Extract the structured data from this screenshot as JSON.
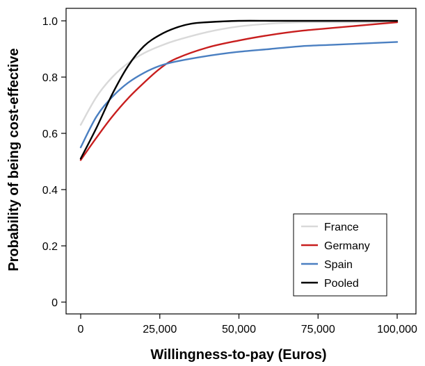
{
  "chart_data": {
    "type": "line",
    "xlabel": "Willingness-to-pay (Euros)",
    "ylabel": "Probability of being cost-effective",
    "xlim": [
      0,
      100000
    ],
    "ylim": [
      0,
      1.0
    ],
    "x_ticks": [
      0,
      25000,
      50000,
      75000,
      100000
    ],
    "x_tick_labels": [
      "0",
      "25,000",
      "50,000",
      "75,000",
      "100,000"
    ],
    "y_ticks": [
      0,
      0.2,
      0.4,
      0.6,
      0.8,
      1.0
    ],
    "y_tick_labels": [
      "0",
      "0.2",
      "0.4",
      "0.6",
      "0.8",
      "1.0"
    ],
    "grid": false,
    "legend_position": "bottom-right",
    "series": [
      {
        "name": "France",
        "color": "#d9d9d9",
        "x": [
          0,
          5000,
          10000,
          15000,
          20000,
          25000,
          30000,
          40000,
          50000,
          60000,
          70000,
          80000,
          90000,
          100000
        ],
        "y": [
          0.63,
          0.73,
          0.8,
          0.85,
          0.885,
          0.91,
          0.93,
          0.96,
          0.98,
          0.99,
          0.995,
          0.995,
          0.995,
          0.995
        ]
      },
      {
        "name": "Germany",
        "color": "#c81e1e",
        "x": [
          0,
          5000,
          10000,
          15000,
          20000,
          25000,
          30000,
          40000,
          50000,
          60000,
          70000,
          80000,
          90000,
          100000
        ],
        "y": [
          0.505,
          0.585,
          0.66,
          0.725,
          0.78,
          0.83,
          0.865,
          0.905,
          0.93,
          0.95,
          0.965,
          0.975,
          0.985,
          0.995
        ]
      },
      {
        "name": "Spain",
        "color": "#4a7fc1",
        "x": [
          0,
          5000,
          10000,
          15000,
          20000,
          25000,
          30000,
          40000,
          50000,
          60000,
          70000,
          80000,
          90000,
          100000
        ],
        "y": [
          0.55,
          0.66,
          0.73,
          0.78,
          0.815,
          0.84,
          0.855,
          0.875,
          0.89,
          0.9,
          0.91,
          0.915,
          0.92,
          0.925
        ]
      },
      {
        "name": "Pooled",
        "color": "#000000",
        "x": [
          0,
          5000,
          10000,
          15000,
          20000,
          25000,
          30000,
          35000,
          40000,
          50000,
          60000,
          70000,
          80000,
          90000,
          100000
        ],
        "y": [
          0.51,
          0.62,
          0.74,
          0.84,
          0.91,
          0.95,
          0.975,
          0.99,
          0.995,
          1.0,
          1.0,
          1.0,
          1.0,
          1.0,
          1.0
        ]
      }
    ]
  }
}
